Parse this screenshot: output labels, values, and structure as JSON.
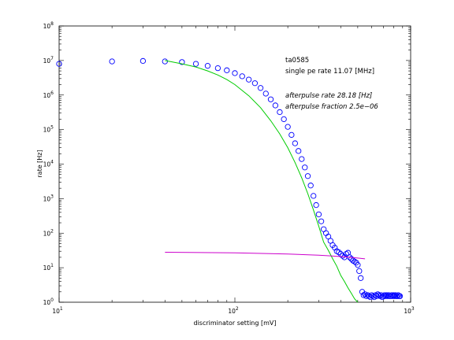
{
  "chart_data": {
    "type": "scatter",
    "xscale": "log",
    "yscale": "log",
    "xlim": [
      10,
      1000
    ],
    "ylim": [
      1,
      100000000
    ],
    "xlabel": "discriminator setting [mV]",
    "ylabel": "rate [Hz]",
    "x_tick_labels": [
      {
        "base": "10",
        "exp": "1"
      },
      {
        "base": "10",
        "exp": "2"
      },
      {
        "base": "10",
        "exp": "3"
      }
    ],
    "y_tick_labels": [
      {
        "base": "10",
        "exp": "0"
      },
      {
        "base": "10",
        "exp": "1"
      },
      {
        "base": "10",
        "exp": "2"
      },
      {
        "base": "10",
        "exp": "3"
      },
      {
        "base": "10",
        "exp": "4"
      },
      {
        "base": "10",
        "exp": "5"
      },
      {
        "base": "10",
        "exp": "6"
      },
      {
        "base": "10",
        "exp": "7"
      },
      {
        "base": "10",
        "exp": "8"
      }
    ],
    "annotations": {
      "line1": "ta0585",
      "line2": "single pe rate 11.07 [MHz]",
      "line3": "afterpulse rate 28.18 [Hz]",
      "line4": "afterpulse fraction 2.5e−06"
    },
    "series": [
      {
        "kind": "markers",
        "marker": "circle",
        "color": "#0000ff",
        "x": [
          10,
          20,
          30,
          40,
          50,
          60,
          70,
          80,
          90,
          100,
          110,
          120,
          130,
          140,
          150,
          160,
          170,
          180,
          190,
          200,
          210,
          220,
          230,
          240,
          250,
          260,
          270,
          280,
          290,
          300,
          310,
          320,
          330,
          340,
          350,
          360,
          370,
          380,
          390,
          400,
          410,
          420,
          430,
          440,
          450,
          460,
          470,
          480,
          490,
          500,
          510,
          520,
          530,
          540,
          550,
          560,
          570,
          580,
          590,
          600,
          610,
          620,
          630,
          640,
          650,
          660,
          670,
          680,
          690,
          700,
          710,
          720,
          730,
          740,
          750,
          760,
          770,
          780,
          790,
          800,
          810,
          820,
          830,
          840,
          850,
          860,
          870
        ],
        "y": [
          8000000,
          9400000,
          9700000,
          9400000,
          9000000,
          8000000,
          7000000,
          6000000,
          5200000,
          4300000,
          3500000,
          2800000,
          2200000,
          1600000,
          1100000,
          750000,
          500000,
          320000,
          200000,
          120000,
          70000,
          40000,
          24000,
          14000,
          8000,
          4500,
          2400,
          1200,
          650,
          350,
          220,
          130,
          100,
          80,
          60,
          45,
          38,
          30,
          28,
          25,
          22,
          20,
          25,
          27,
          20,
          18,
          16,
          15,
          14,
          12,
          8,
          5,
          2,
          1.6,
          1.7,
          1.5,
          1.6,
          1.5,
          1.4,
          1.6,
          1.5,
          1.4,
          1.6,
          1.5,
          1.7,
          1.6,
          1.5,
          1.6,
          1.4,
          1.5,
          1.6,
          1.5,
          1.6,
          1.5,
          1.6,
          1.5,
          1.5,
          1.6,
          1.5,
          1.6,
          1.5,
          1.6,
          1.5,
          1.5,
          1.6,
          1.5,
          1.5
        ]
      },
      {
        "kind": "line",
        "color": "#00cc00",
        "x": [
          40,
          50,
          60,
          70,
          80,
          90,
          100,
          120,
          140,
          160,
          180,
          200,
          220,
          240,
          260,
          280,
          300,
          320,
          340,
          360,
          380,
          400,
          420,
          440,
          460,
          480,
          500
        ],
        "y": [
          10000000,
          8000000,
          6500000,
          5000000,
          3800000,
          2800000,
          2000000,
          950000,
          430000,
          180000,
          75000,
          30000,
          11000,
          4000,
          1400,
          470,
          160,
          55,
          32,
          18,
          11,
          6,
          4,
          2.6,
          1.8,
          1.25,
          1.0
        ]
      },
      {
        "kind": "line",
        "color": "#cc00cc",
        "x": [
          40,
          100,
          200,
          300,
          350,
          400,
          450,
          500,
          550
        ],
        "y": [
          28,
          27,
          25,
          23,
          22,
          21,
          20,
          19,
          18
        ]
      }
    ]
  }
}
